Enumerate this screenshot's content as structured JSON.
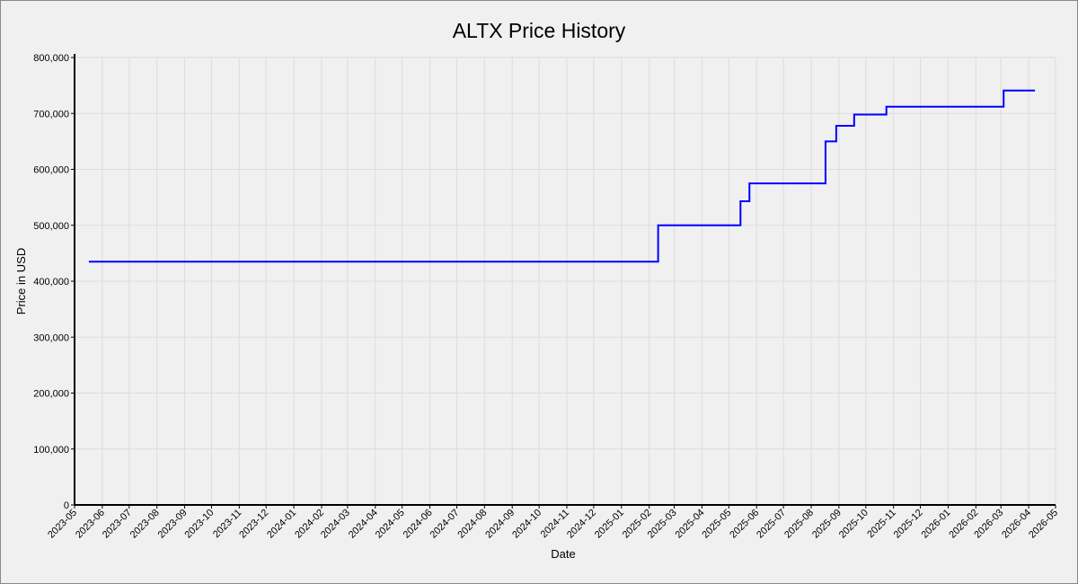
{
  "chart_data": {
    "type": "line",
    "step": "post",
    "title": "ALTX Price History",
    "x_label": "Date",
    "y_label": "Price in USD",
    "x": [
      "2023-05-17",
      "2025-02-11",
      "2025-05-14",
      "2025-05-24",
      "2025-08-17",
      "2025-08-29",
      "2025-09-18",
      "2025-10-24",
      "2026-03-04",
      "2026-04-08"
    ],
    "values": [
      435000,
      500000,
      543000,
      575000,
      650000,
      678000,
      698000,
      712000,
      741000,
      741000
    ],
    "color": "#0000ff",
    "xlim": [
      "2023-05-01",
      "2026-05-01"
    ],
    "xticks": [
      "2023-05",
      "2023-06",
      "2023-07",
      "2023-08",
      "2023-09",
      "2023-10",
      "2023-11",
      "2023-12",
      "2024-01",
      "2024-02",
      "2024-03",
      "2024-04",
      "2024-05",
      "2024-06",
      "2024-07",
      "2024-08",
      "2024-09",
      "2024-10",
      "2024-11",
      "2024-12",
      "2025-01",
      "2025-02",
      "2025-03",
      "2025-04",
      "2025-05",
      "2025-06",
      "2025-07",
      "2025-08",
      "2025-09",
      "2025-10",
      "2025-11",
      "2025-12",
      "2026-01",
      "2026-02",
      "2026-03",
      "2026-04",
      "2026-05"
    ],
    "ylim": [
      0,
      800000
    ],
    "yticks": [
      0,
      {
        "value": 100000,
        "label": "100,000"
      },
      {
        "value": 200000,
        "label": "200,000"
      },
      {
        "value": 300000,
        "label": "300,000"
      },
      {
        "value": 400000,
        "label": "400,000"
      },
      {
        "value": 500000,
        "label": "500,000"
      },
      {
        "value": 600000,
        "label": "600,000"
      },
      {
        "value": 700000,
        "label": "700,000"
      },
      {
        "value": 800000,
        "label": "800,000"
      }
    ],
    "grid": true
  }
}
